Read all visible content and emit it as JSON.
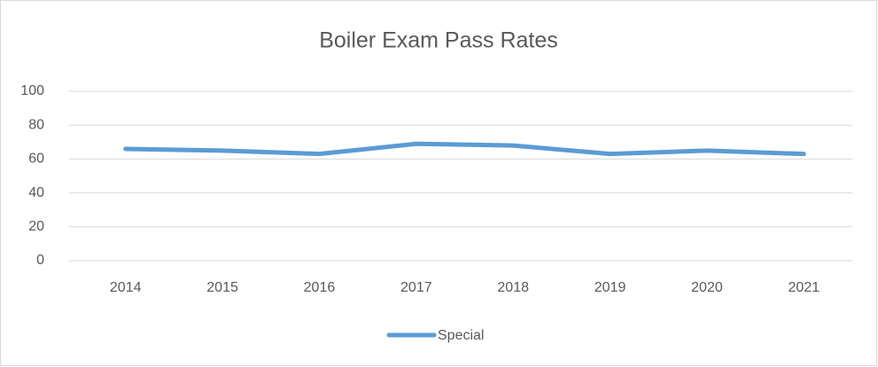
{
  "chart_data": {
    "type": "line",
    "title": "Boiler Exam Pass Rates",
    "categories": [
      "2014",
      "2015",
      "2016",
      "2017",
      "2018",
      "2019",
      "2020",
      "2021"
    ],
    "series": [
      {
        "name": "Special",
        "color": "#5b9bd5",
        "values": [
          66,
          65,
          63,
          69,
          68,
          63,
          65,
          63
        ]
      }
    ],
    "ylim": [
      0,
      100
    ],
    "yticks": [
      0,
      20,
      40,
      60,
      80,
      100
    ],
    "grid": true,
    "legend": "bottom"
  }
}
